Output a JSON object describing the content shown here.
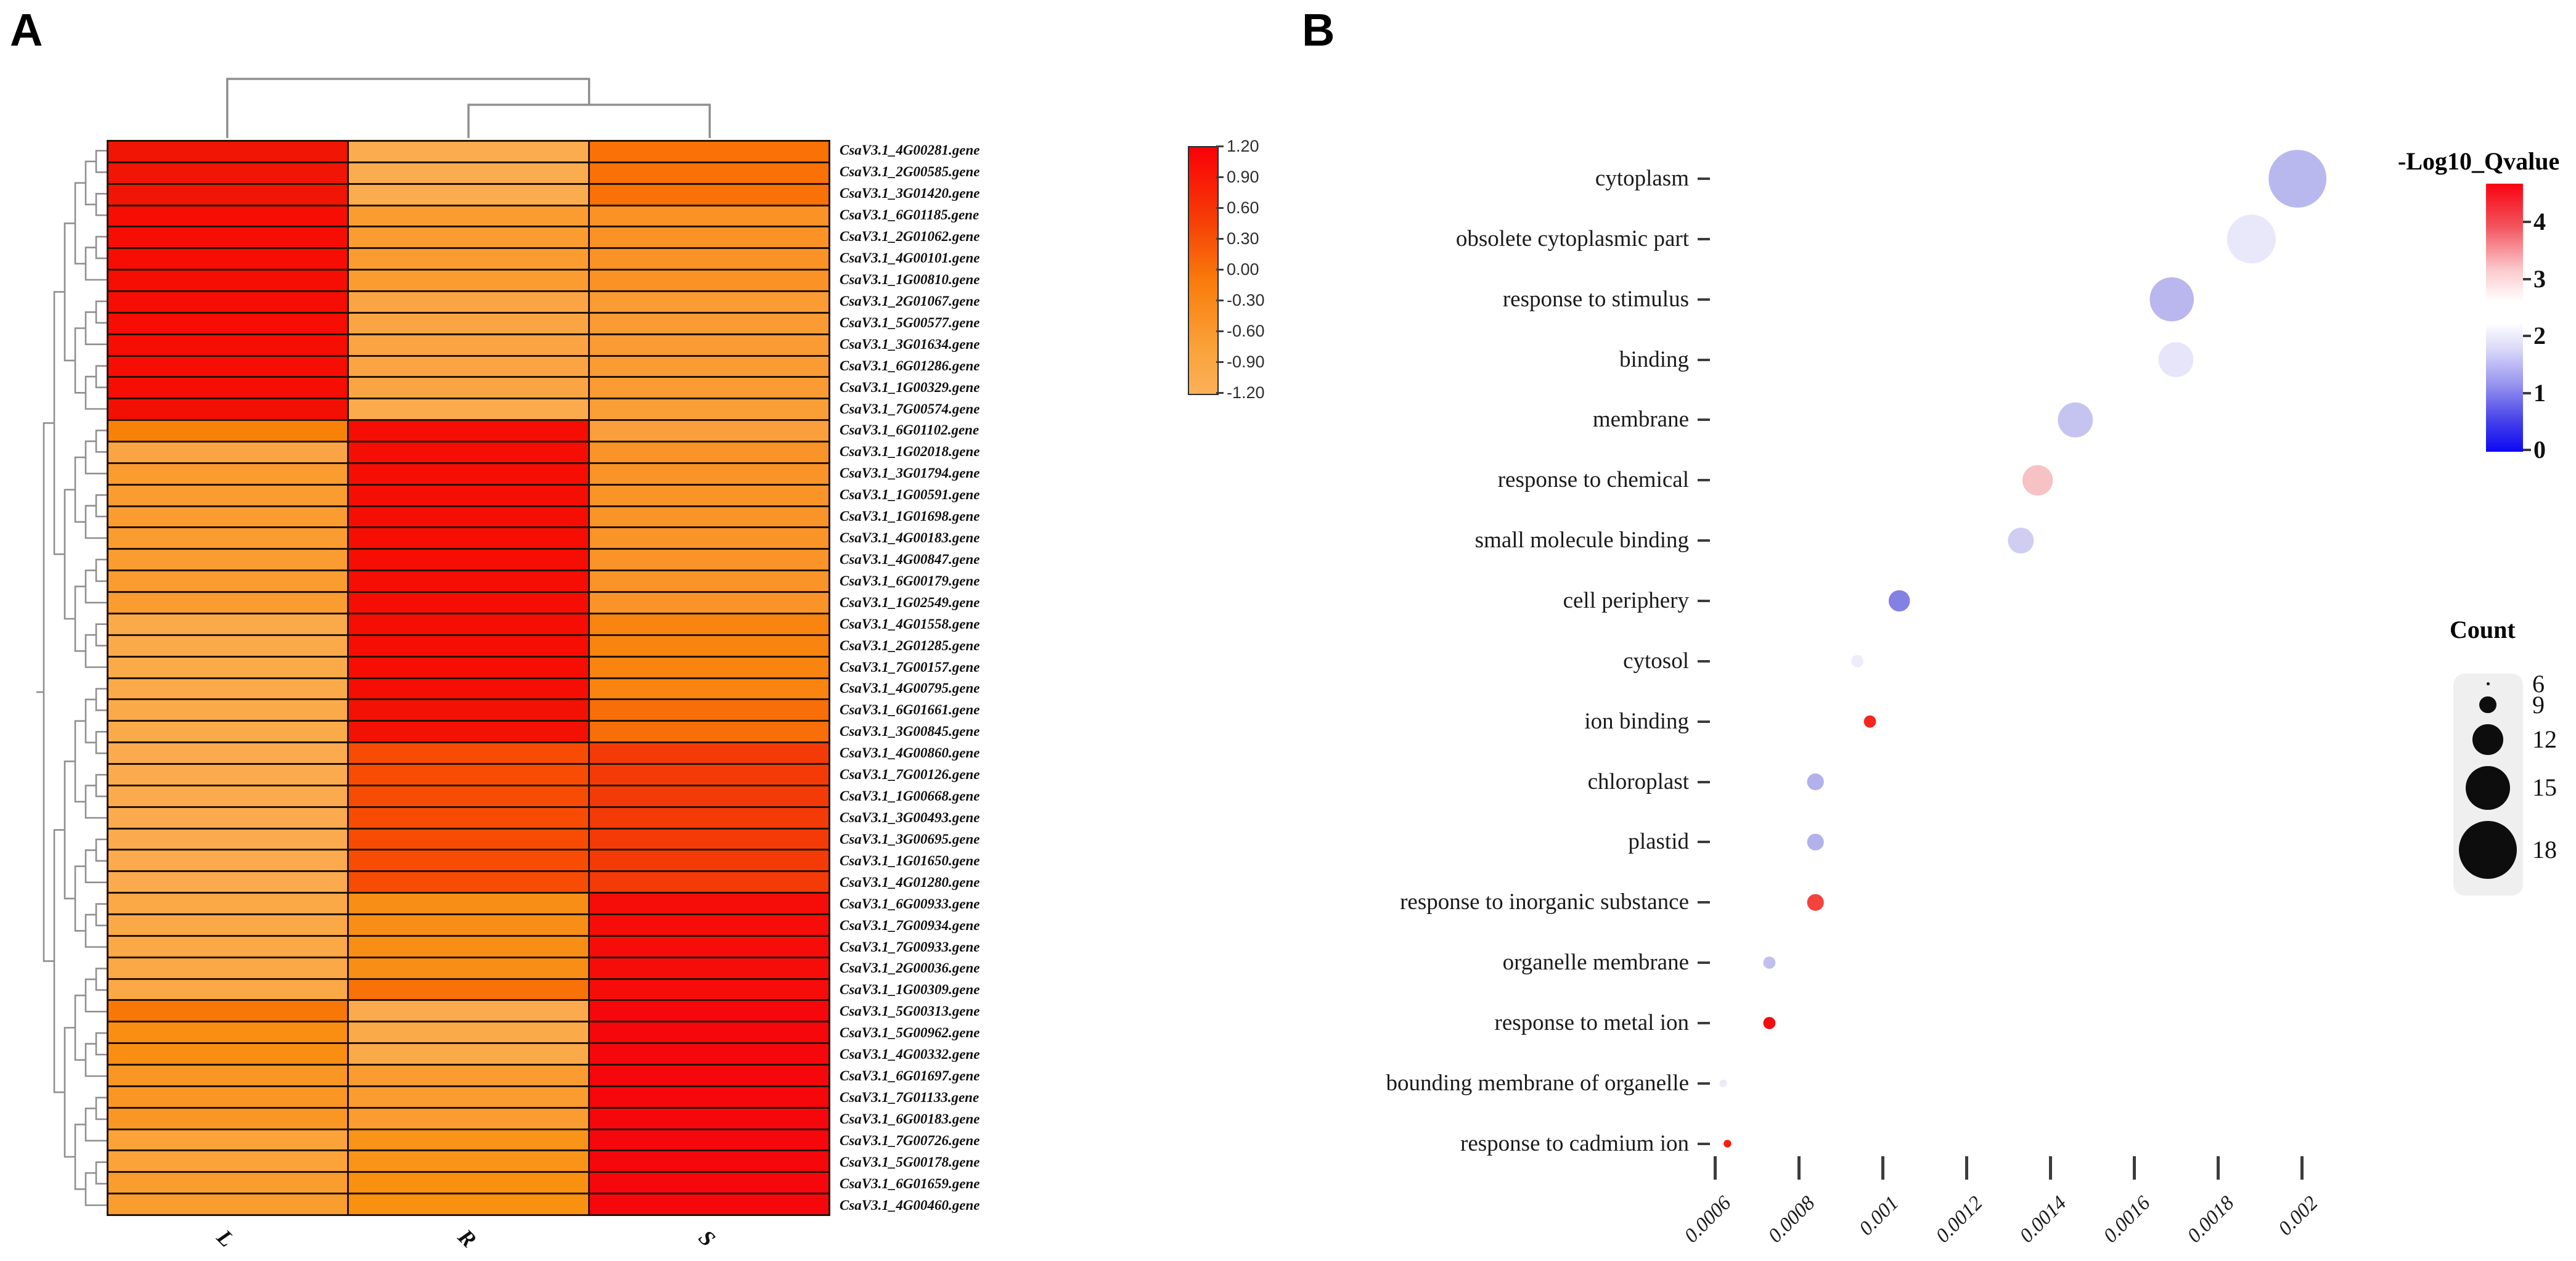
{
  "figure": {
    "panel_a_label": "A",
    "panel_b_label": "B"
  },
  "chart_data": [
    {
      "type": "heatmap",
      "title": "Hierarchically clustered gene expression heatmap",
      "columns": [
        "L",
        "R",
        "S"
      ],
      "col_dendrogram": "(L, (R, S))",
      "colorbar_ticks": [
        "1.20",
        "0.90",
        "0.60",
        "0.30",
        "0.00",
        "-0.30",
        "-0.60",
        "-0.90",
        "-1.20"
      ],
      "colorbar_range": [
        -1.2,
        1.2
      ],
      "colorbar_colors": {
        "max": "#fa0007",
        "mid": "#f97d0c",
        "min": "#fbb159"
      },
      "rows": [
        "CsaV3.1_4G00281.gene",
        "CsaV3.1_2G00585.gene",
        "CsaV3.1_3G01420.gene",
        "CsaV3.1_6G01185.gene",
        "CsaV3.1_2G01062.gene",
        "CsaV3.1_4G00101.gene",
        "CsaV3.1_1G00810.gene",
        "CsaV3.1_2G01067.gene",
        "CsaV3.1_5G00577.gene",
        "CsaV3.1_3G01634.gene",
        "CsaV3.1_6G01286.gene",
        "CsaV3.1_1G00329.gene",
        "CsaV3.1_7G00574.gene",
        "CsaV3.1_6G01102.gene",
        "CsaV3.1_1G02018.gene",
        "CsaV3.1_3G01794.gene",
        "CsaV3.1_1G00591.gene",
        "CsaV3.1_1G01698.gene",
        "CsaV3.1_4G00183.gene",
        "CsaV3.1_4G00847.gene",
        "CsaV3.1_6G00179.gene",
        "CsaV3.1_1G02549.gene",
        "CsaV3.1_4G01558.gene",
        "CsaV3.1_2G01285.gene",
        "CsaV3.1_7G00157.gene",
        "CsaV3.1_4G00795.gene",
        "CsaV3.1_6G01661.gene",
        "CsaV3.1_3G00845.gene",
        "CsaV3.1_4G00860.gene",
        "CsaV3.1_7G00126.gene",
        "CsaV3.1_1G00668.gene",
        "CsaV3.1_3G00493.gene",
        "CsaV3.1_3G00695.gene",
        "CsaV3.1_1G01650.gene",
        "CsaV3.1_4G01280.gene",
        "CsaV3.1_6G00933.gene",
        "CsaV3.1_7G00934.gene",
        "CsaV3.1_7G00933.gene",
        "CsaV3.1_2G00036.gene",
        "CsaV3.1_1G00309.gene",
        "CsaV3.1_5G00313.gene",
        "CsaV3.1_5G00962.gene",
        "CsaV3.1_4G00332.gene",
        "CsaV3.1_6G01697.gene",
        "CsaV3.1_7G01133.gene",
        "CsaV3.1_6G00183.gene",
        "CsaV3.1_7G00726.gene",
        "CsaV3.1_5G00178.gene",
        "CsaV3.1_6G01659.gene",
        "CsaV3.1_4G00460.gene"
      ],
      "cell_colors": [
        [
          "#f01505",
          "#fbac4f",
          "#f97107"
        ],
        [
          "#f01505",
          "#fbac4f",
          "#f97107"
        ],
        [
          "#f01505",
          "#fbac4f",
          "#f97107"
        ],
        [
          "#f60d04",
          "#fa9c30",
          "#fa9226"
        ],
        [
          "#f60d04",
          "#fa9c30",
          "#fa9226"
        ],
        [
          "#f60d04",
          "#fa9c30",
          "#fa9226"
        ],
        [
          "#f60d04",
          "#fa9c30",
          "#fa9226"
        ],
        [
          "#f60d04",
          "#fba443",
          "#fa9c33"
        ],
        [
          "#f60d04",
          "#fba443",
          "#fa9c33"
        ],
        [
          "#f60d04",
          "#fba443",
          "#fa9c33"
        ],
        [
          "#f60d04",
          "#fba443",
          "#fa9c33"
        ],
        [
          "#f60d04",
          "#fba443",
          "#fa9c33"
        ],
        [
          "#f21005",
          "#fbab4c",
          "#fa9e36"
        ],
        [
          "#f88108",
          "#f60d04",
          "#fa9f3c"
        ],
        [
          "#fba446",
          "#f60d04",
          "#fa9428"
        ],
        [
          "#fa9c30",
          "#f60d04",
          "#fa9428"
        ],
        [
          "#fa9c30",
          "#f60d04",
          "#fa9428"
        ],
        [
          "#fa9c30",
          "#f60d04",
          "#fa9428"
        ],
        [
          "#fa9c30",
          "#f60d04",
          "#fa9428"
        ],
        [
          "#fa9c30",
          "#f60d04",
          "#fa9428"
        ],
        [
          "#fa9c30",
          "#f60d04",
          "#fa9428"
        ],
        [
          "#fa9c30",
          "#f60d04",
          "#fa9428"
        ],
        [
          "#fbaa4a",
          "#f60d04",
          "#f9840f"
        ],
        [
          "#fbaa4a",
          "#f60d04",
          "#f9840f"
        ],
        [
          "#fbaa4a",
          "#f60d04",
          "#f9840f"
        ],
        [
          "#fbaa4a",
          "#f60d04",
          "#f9840f"
        ],
        [
          "#fbaa4a",
          "#f31105",
          "#f86e08"
        ],
        [
          "#fbaa4a",
          "#f31105",
          "#f86e08"
        ],
        [
          "#fbab4d",
          "#f84c04",
          "#f43a07"
        ],
        [
          "#fbab4d",
          "#f84c04",
          "#f43a07"
        ],
        [
          "#fbab4d",
          "#f84c04",
          "#f43a07"
        ],
        [
          "#fbab4d",
          "#f84c04",
          "#f43a07"
        ],
        [
          "#fbab4d",
          "#f84c04",
          "#f43a07"
        ],
        [
          "#fbab4d",
          "#f84c04",
          "#f43a07"
        ],
        [
          "#fbab4d",
          "#f84c04",
          "#f43a07"
        ],
        [
          "#fba847",
          "#f98e16",
          "#f60d09"
        ],
        [
          "#fba847",
          "#f98e16",
          "#f60d09"
        ],
        [
          "#fba847",
          "#f98e16",
          "#f60d09"
        ],
        [
          "#fba847",
          "#f98e16",
          "#f60d09"
        ],
        [
          "#fba847",
          "#f87208",
          "#f60d09"
        ],
        [
          "#f87807",
          "#fbab4d",
          "#f6070c"
        ],
        [
          "#f98e13",
          "#fbaa4a",
          "#f6070c"
        ],
        [
          "#f98e13",
          "#fbaa4a",
          "#f6070c"
        ],
        [
          "#fa9623",
          "#fa9c30",
          "#f6070c"
        ],
        [
          "#fa9623",
          "#fa9c30",
          "#f6070c"
        ],
        [
          "#fa9623",
          "#fa9c30",
          "#f6070c"
        ],
        [
          "#fba338",
          "#fa9418",
          "#f6070c"
        ],
        [
          "#fba338",
          "#fa9418",
          "#f6070c"
        ],
        [
          "#fa9d2f",
          "#fa9010",
          "#f6070c"
        ],
        [
          "#fa9d2f",
          "#fa9010",
          "#f6070c"
        ]
      ]
    },
    {
      "type": "bubble",
      "title": "GO enrichment dot plot",
      "x_tick_labels": [
        "0.0006",
        "0.0008",
        "0.001",
        "0.0012",
        "0.0014",
        "0.0016",
        "0.0018",
        "0.002"
      ],
      "x_range": [
        0.0006,
        0.002
      ],
      "categories": [
        "cytoplasm",
        "obsolete cytoplasmic part",
        "response to stimulus",
        "binding",
        "membrane",
        "response to chemical",
        "small molecule binding",
        "cell periphery",
        "cytosol",
        "ion binding",
        "chloroplast",
        "plastid",
        "response to inorganic substance",
        "organelle membrane",
        "response to metal ion",
        "bounding membrane of organelle",
        "response to cadmium ion"
      ],
      "points": [
        {
          "category": "cytoplasm",
          "x": 0.00199,
          "count": 18,
          "neg_log10_qvalue": 1.5,
          "color": "#b9b8ee"
        },
        {
          "category": "obsolete cytoplasmic part",
          "x": 0.00188,
          "count": 16,
          "neg_log10_qvalue": 2.1,
          "color": "#e9e7fa"
        },
        {
          "category": "response to stimulus",
          "x": 0.00169,
          "count": 15,
          "neg_log10_qvalue": 1.5,
          "color": "#b9b7ed"
        },
        {
          "category": "binding",
          "x": 0.0017,
          "count": 13,
          "neg_log10_qvalue": 2.1,
          "color": "#e7e5f9"
        },
        {
          "category": "membrane",
          "x": 0.00146,
          "count": 13,
          "neg_log10_qvalue": 1.7,
          "color": "#c5c4f0"
        },
        {
          "category": "response to chemical",
          "x": 0.00137,
          "count": 12,
          "neg_log10_qvalue": 3.2,
          "color": "#f6c2c4"
        },
        {
          "category": "small molecule binding",
          "x": 0.00133,
          "count": 11,
          "neg_log10_qvalue": 1.8,
          "color": "#cfcdf2"
        },
        {
          "category": "cell periphery",
          "x": 0.00104,
          "count": 10,
          "neg_log10_qvalue": 1.0,
          "color": "#8381e4"
        },
        {
          "category": "cytosol",
          "x": 0.00094,
          "count": 8,
          "neg_log10_qvalue": 2.2,
          "color": "#eeecfb"
        },
        {
          "category": "ion binding",
          "x": 0.00097,
          "count": 8,
          "neg_log10_qvalue": 4.4,
          "color": "#f3261f"
        },
        {
          "category": "chloroplast",
          "x": 0.00084,
          "count": 9,
          "neg_log10_qvalue": 1.4,
          "color": "#b3b1ec"
        },
        {
          "category": "plastid",
          "x": 0.00084,
          "count": 9,
          "neg_log10_qvalue": 1.4,
          "color": "#b3b1ec"
        },
        {
          "category": "response to inorganic substance",
          "x": 0.00084,
          "count": 9,
          "neg_log10_qvalue": 4.1,
          "color": "#f4423d"
        },
        {
          "category": "organelle membrane",
          "x": 0.00073,
          "count": 8,
          "neg_log10_qvalue": 1.6,
          "color": "#c0bfef"
        },
        {
          "category": "response to metal ion",
          "x": 0.00073,
          "count": 8,
          "neg_log10_qvalue": 4.6,
          "color": "#f20d0d"
        },
        {
          "category": "bounding membrane of organelle",
          "x": 0.00062,
          "count": 7,
          "neg_log10_qvalue": 2.2,
          "color": "#eceafa"
        },
        {
          "category": "response to cadmium ion",
          "x": 0.00063,
          "count": 7,
          "neg_log10_qvalue": 4.5,
          "color": "#f41d14"
        }
      ],
      "color_legend": {
        "title": "-Log10_Qvalue",
        "ticks": [
          "4",
          "3",
          "2",
          "1",
          "0"
        ],
        "range": [
          0,
          4.7
        ],
        "top_color": "#f90310",
        "mid_color": "#ffffff",
        "bottom_color": "#0d08f2"
      },
      "size_legend": {
        "title": "Count",
        "values": [
          "6",
          "9",
          "12",
          "15",
          "18"
        ]
      }
    }
  ]
}
